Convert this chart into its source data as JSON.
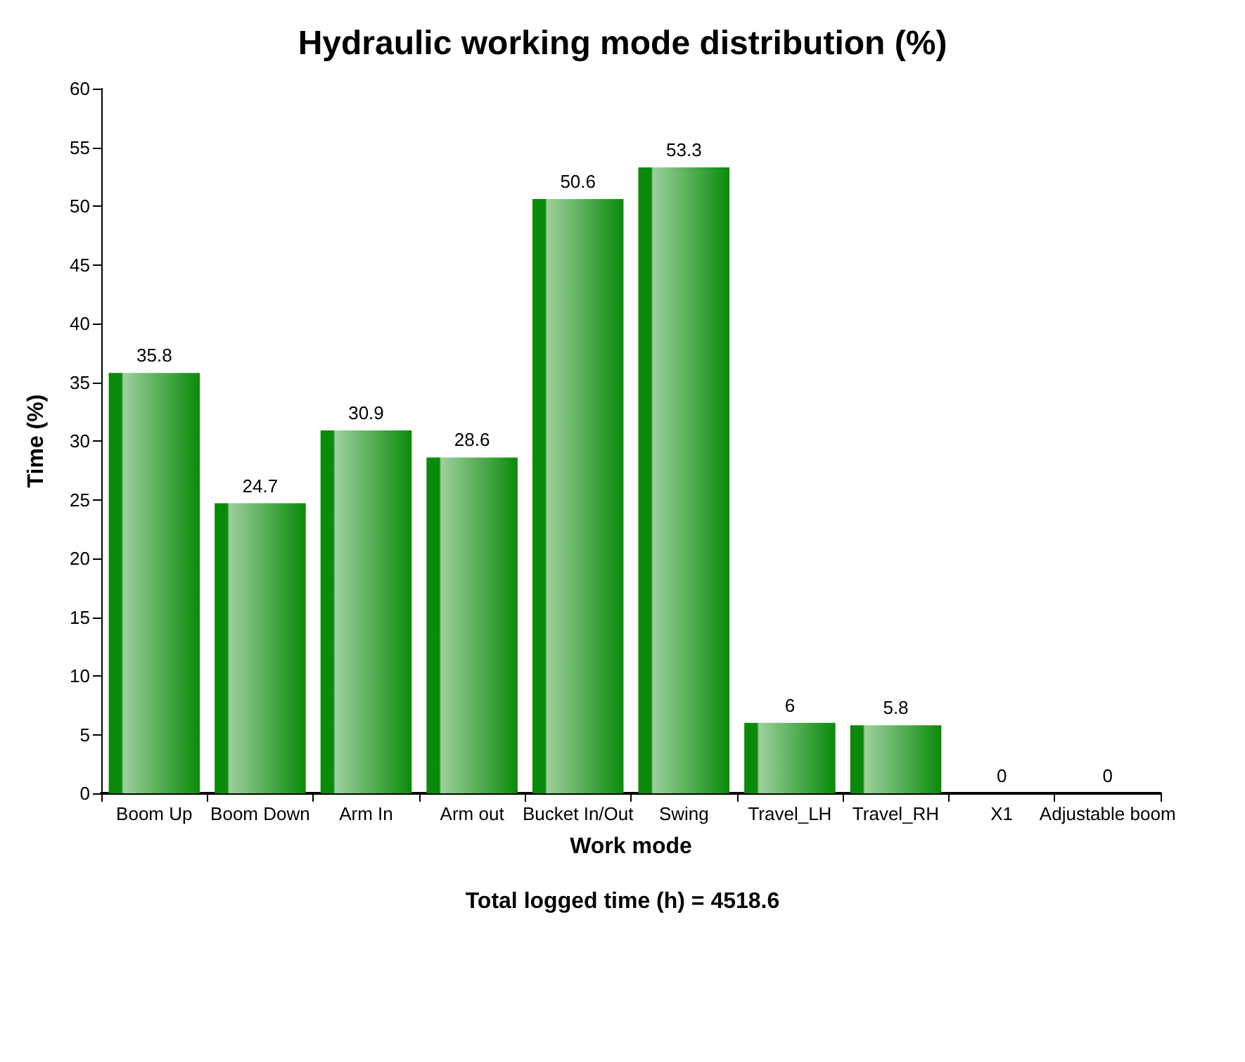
{
  "chart_data": {
    "type": "bar",
    "title": "Hydraulic working mode distribution (%)",
    "xlabel": "Work mode",
    "ylabel": "Time (%)",
    "categories": [
      "Boom Up",
      "Boom Down",
      "Arm In",
      "Arm out",
      "Bucket In/Out",
      "Swing",
      "Travel_LH",
      "Travel_RH",
      "X1",
      "Adjustable boom"
    ],
    "values": [
      35.8,
      24.7,
      30.9,
      28.6,
      50.6,
      53.3,
      6,
      5.8,
      0,
      0
    ],
    "color": "#0a8a0a",
    "ylim": [
      0,
      60
    ],
    "yticks": [
      0,
      5,
      10,
      15,
      20,
      25,
      30,
      35,
      40,
      45,
      50,
      55,
      60
    ],
    "grid": false,
    "data_labels": true,
    "annotations": [
      "Total logged time (h) = 4518.6"
    ]
  }
}
